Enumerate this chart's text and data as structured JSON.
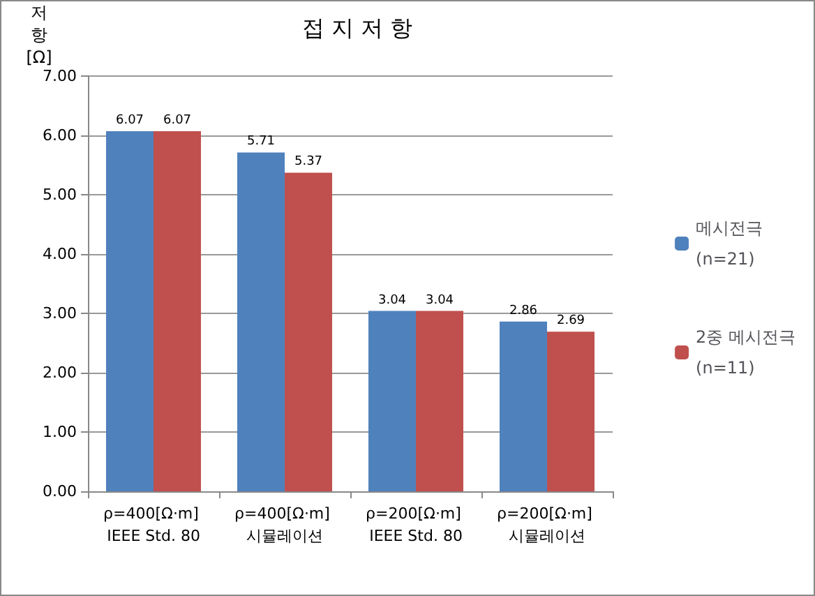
{
  "chart_data": {
    "type": "bar",
    "title": "접 지 저 항",
    "ylabel": "저항[Ω]",
    "categories": [
      "ρ=400[Ω·m] IEEE Std. 80",
      "ρ=400[Ω·m] 시뮬레이션",
      "ρ=200[Ω·m] IEEE Std. 80",
      "ρ=200[Ω·m] 시뮬레이션"
    ],
    "series": [
      {
        "name": "메시전극 (n=21)",
        "color": "#4f81bd",
        "values": [
          6.07,
          5.71,
          3.04,
          2.86
        ]
      },
      {
        "name": "2중 메시전극 (n=11)",
        "color": "#c0504d",
        "values": [
          6.07,
          5.37,
          3.04,
          2.69
        ]
      }
    ],
    "ylim": [
      0,
      7
    ],
    "yticks": [
      {
        "value": 0,
        "label": "0.00"
      },
      {
        "value": 1,
        "label": "1.00"
      },
      {
        "value": 2,
        "label": "2.00"
      },
      {
        "value": 3,
        "label": "3.00"
      },
      {
        "value": 4,
        "label": "4.00"
      },
      {
        "value": 5,
        "label": "5.00"
      },
      {
        "value": 6,
        "label": "6.00"
      },
      {
        "value": 7,
        "label": "7.00"
      }
    ],
    "grid": "y",
    "legend": "right",
    "data_labels": true
  }
}
